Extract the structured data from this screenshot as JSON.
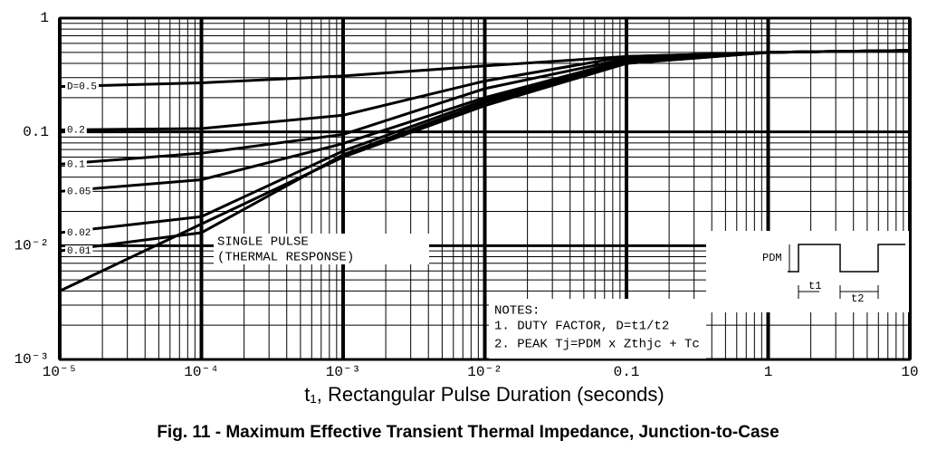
{
  "chart_data": {
    "type": "line",
    "title": "Fig. 11 - Maximum Effective Transient Thermal Impedance, Junction-to-Case",
    "x_label": "t₁, Rectangular Pulse Duration (seconds)",
    "x": [
      1e-05,
      0.0001,
      0.001,
      0.01,
      0.1,
      1,
      10
    ],
    "xlim": [
      1e-05,
      10
    ],
    "ylim": [
      0.001,
      1
    ],
    "xticks": [
      {
        "value": 1e-05,
        "label": "10⁻⁵"
      },
      {
        "value": 0.0001,
        "label": "10⁻⁴"
      },
      {
        "value": 0.001,
        "label": "10⁻³"
      },
      {
        "value": 0.01,
        "label": "10⁻²"
      },
      0.1,
      1,
      10
    ],
    "yticks": [
      {
        "value": 0.001,
        "label": "10⁻³"
      },
      {
        "value": 0.01,
        "label": "10⁻²"
      },
      0.1,
      1
    ],
    "log_x": true,
    "log_y": true,
    "grid": true,
    "series": [
      {
        "name": "D=0.5",
        "color": "#000000",
        "values": [
          0.25,
          0.27,
          0.31,
          0.38,
          0.46,
          0.5,
          0.52
        ]
      },
      {
        "name": "0.2",
        "color": "#000000",
        "values": [
          0.104,
          0.107,
          0.14,
          0.28,
          0.46,
          0.5,
          0.52
        ]
      },
      {
        "name": "0.1",
        "color": "#000000",
        "values": [
          0.052,
          0.065,
          0.095,
          0.24,
          0.44,
          0.5,
          0.52
        ]
      },
      {
        "name": "0.05",
        "color": "#000000",
        "values": [
          0.03,
          0.038,
          0.079,
          0.2,
          0.43,
          0.5,
          0.52
        ]
      },
      {
        "name": "0.02",
        "color": "#000000",
        "values": [
          0.013,
          0.018,
          0.068,
          0.19,
          0.41,
          0.5,
          0.52
        ]
      },
      {
        "name": "0.01",
        "color": "#000000",
        "values": [
          0.009,
          0.013,
          0.063,
          0.18,
          0.4,
          0.5,
          0.52
        ]
      },
      {
        "name": "SINGLE PULSE",
        "color": "#000000",
        "values": [
          0.004,
          0.0155,
          0.06,
          0.17,
          0.4,
          0.5,
          0.52
        ]
      }
    ],
    "annotations": {
      "single_pulse": "(THERMAL RESPONSE)",
      "notes": [
        "NOTES:",
        "1. DUTY FACTOR, D=t1/t2",
        "2. PEAK Tj=PDM x Zthjc + Tc"
      ],
      "waveform": [
        "PDM",
        "t1",
        "t2"
      ]
    }
  }
}
